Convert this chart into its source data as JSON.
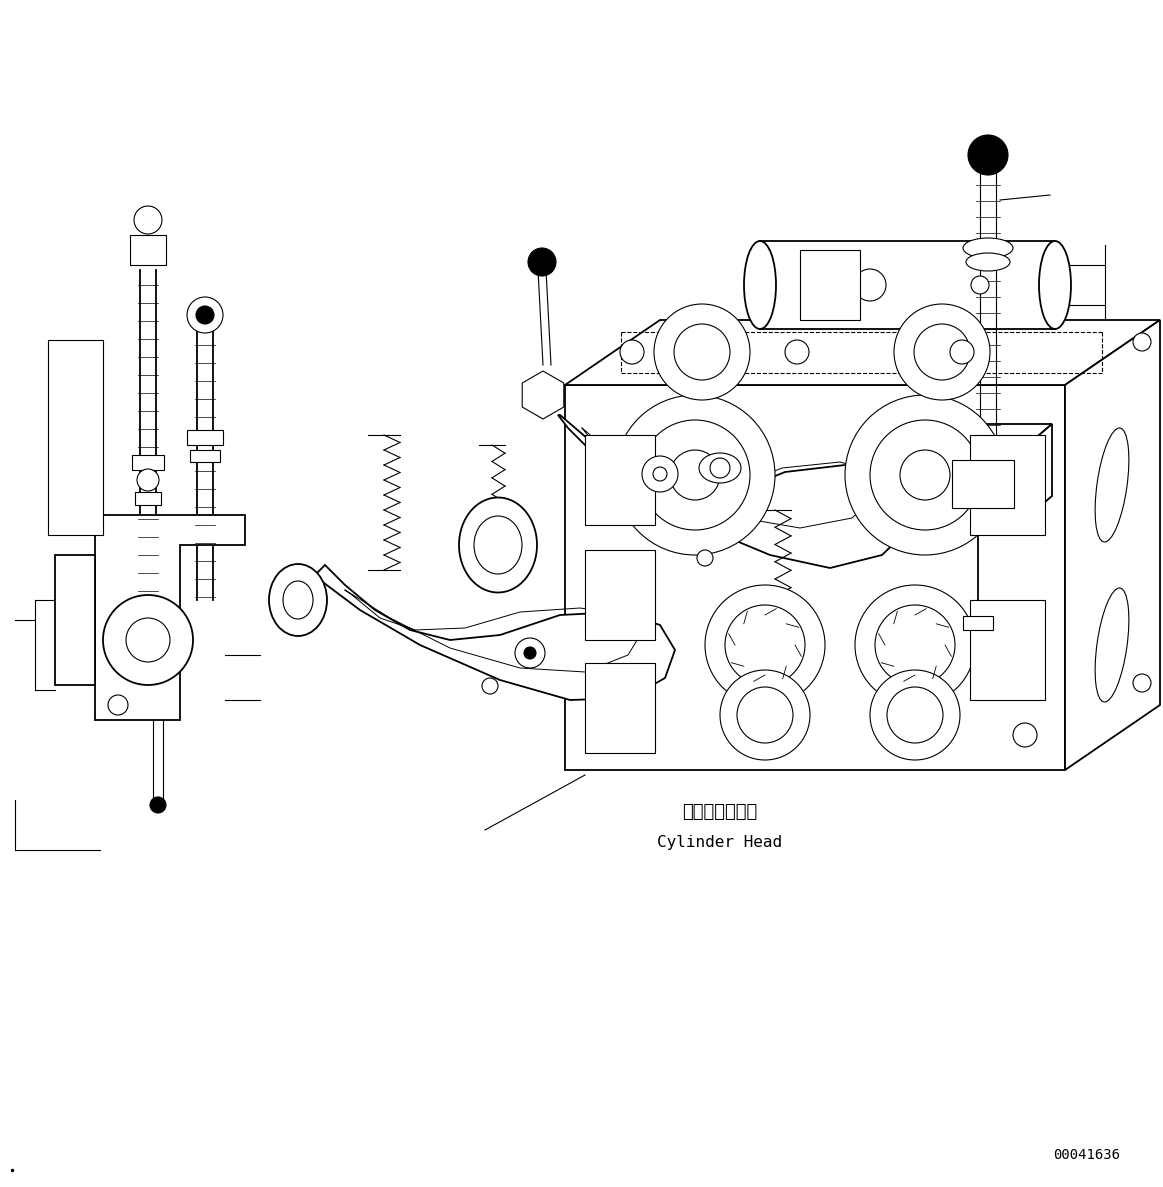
{
  "background_color": "#ffffff",
  "line_color": "#000000",
  "title_code": "00041636",
  "label_jp": "シリンダヘッド",
  "label_en": "Cylinder Head",
  "figsize": [
    11.63,
    11.87
  ],
  "dpi": 100
}
